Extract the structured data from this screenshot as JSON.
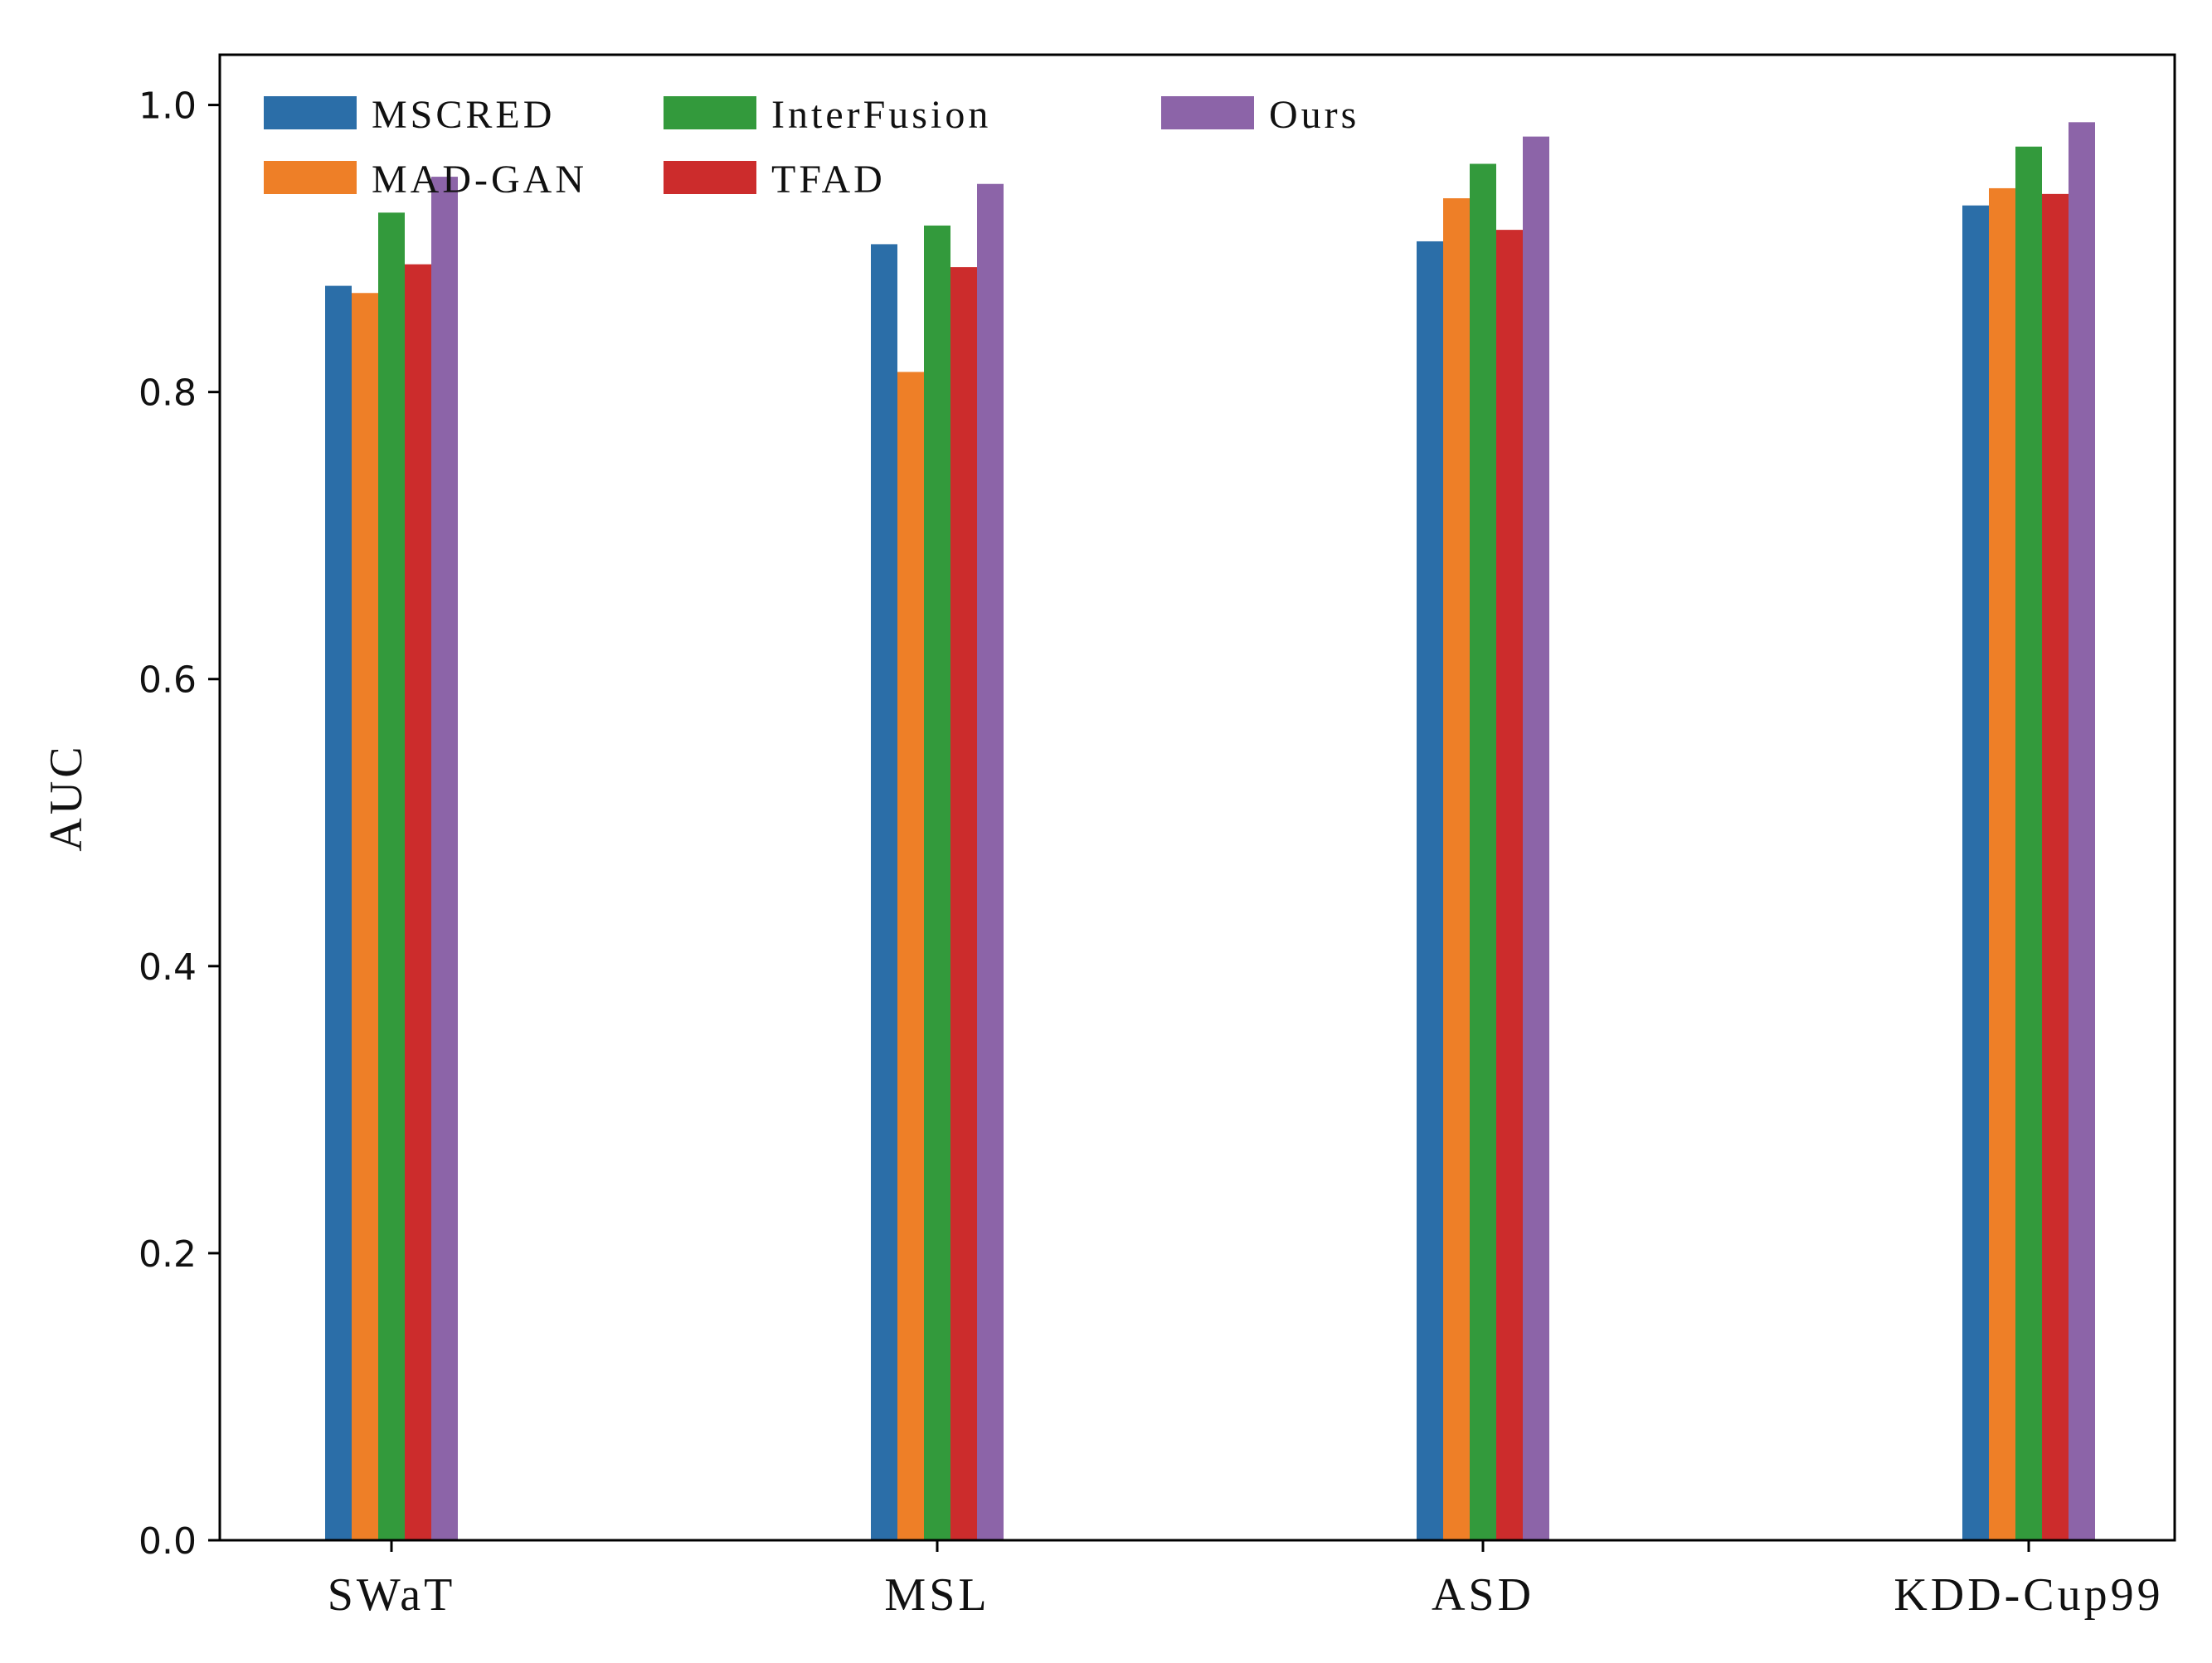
{
  "chart_data": {
    "type": "bar",
    "title": "",
    "xlabel": "",
    "ylabel": "AUC",
    "ylim": [
      0,
      1.035
    ],
    "yticks": [
      "0.0",
      "0.2",
      "0.4",
      "0.6",
      "0.8",
      "1.0"
    ],
    "categories": [
      "SWaT",
      "MSL",
      "ASD",
      "KDD-Cup99"
    ],
    "series": [
      {
        "name": "MSCRED",
        "color": "#2b6ea8",
        "values": [
          0.874,
          0.903,
          0.905,
          0.93
        ]
      },
      {
        "name": "MAD-GAN",
        "color": "#ee7f27",
        "values": [
          0.869,
          0.814,
          0.935,
          0.942
        ]
      },
      {
        "name": "InterFusion",
        "color": "#339a3c",
        "values": [
          0.925,
          0.916,
          0.959,
          0.971
        ]
      },
      {
        "name": "TFAD",
        "color": "#cc2c2c",
        "values": [
          0.889,
          0.887,
          0.913,
          0.938
        ]
      },
      {
        "name": "Ours",
        "color": "#8c64a8",
        "values": [
          0.95,
          0.945,
          0.978,
          0.988
        ]
      }
    ],
    "grid": false,
    "legend_position": "top-left"
  }
}
